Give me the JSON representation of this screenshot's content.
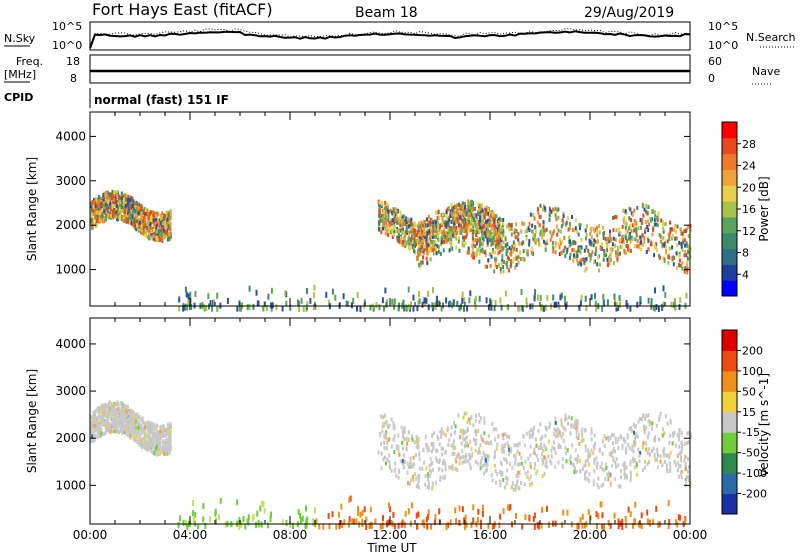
{
  "header": {
    "station": "Fort Hays East (fitACF)",
    "beam": "Beam 18",
    "date": "29/Aug/2019"
  },
  "noise_panel": {
    "left_label": "N.Sky",
    "right_label": "N.Search",
    "left_ticks": [
      "10^5",
      "10^0"
    ],
    "right_ticks": [
      "10^5",
      "10^0"
    ]
  },
  "freq_panel": {
    "left_label_1": "Freq.",
    "left_label_2": "[MHz]",
    "right_label": "Nave",
    "left_ticks": [
      "18",
      "8"
    ],
    "right_ticks": [
      "60",
      "0"
    ]
  },
  "cpid": {
    "label": "CPID",
    "value": "normal (fast) 151 IF"
  },
  "chart_data": [
    {
      "type": "heatmap",
      "name": "power",
      "ylabel": "Slant Range [km]",
      "y_ticks": [
        "4000",
        "3000",
        "2000",
        "1000"
      ],
      "ylim": [
        180,
        4550
      ],
      "colorbar_label": "Power [dB]",
      "colorbar_ticks": [
        "28",
        "24",
        "20",
        "16",
        "12",
        "8",
        "4"
      ],
      "colorbar_colors": [
        "#0000ff",
        "#1f3fa0",
        "#2f6f8a",
        "#3b8a6a",
        "#5aa35a",
        "#a8c34a",
        "#e6d24a",
        "#f2a23a",
        "#f07a2a",
        "#e8481c",
        "#ff0000"
      ],
      "features": [
        {
          "t_start": 0.0,
          "t_end": 3.2,
          "range_km": [
            1800,
            2700
          ]
        },
        {
          "t_start": 11.5,
          "t_end": 16.5,
          "range_km": [
            1500,
            2500
          ]
        },
        {
          "t_start": 13.0,
          "t_end": 24.0,
          "range_km": [
            1000,
            2500
          ]
        },
        {
          "t_start": 3.5,
          "t_end": 24.0,
          "range_km": [
            180,
            700
          ]
        }
      ]
    },
    {
      "type": "heatmap",
      "name": "velocity",
      "ylabel": "Slant Range [km]",
      "y_ticks": [
        "4000",
        "3000",
        "2000",
        "1000"
      ],
      "ylim": [
        180,
        4550
      ],
      "colorbar_label": "Velocity [m s^-1]",
      "colorbar_ticks": [
        "200",
        "100",
        "50",
        "15",
        "-15",
        "-50",
        "-100",
        "-200"
      ],
      "colorbar_colors": [
        "#1c2fa8",
        "#2a6aa8",
        "#2f8a4a",
        "#6fcc3a",
        "#c8c8c8",
        "#f2d23a",
        "#f0901a",
        "#ef4a14",
        "#e00000"
      ],
      "features": [
        {
          "t_start": 0.0,
          "t_end": 3.2,
          "range_km": [
            1800,
            2700
          ]
        },
        {
          "t_start": 11.5,
          "t_end": 24.0,
          "range_km": [
            900,
            2600
          ]
        },
        {
          "t_start": 3.5,
          "t_end": 24.0,
          "range_km": [
            180,
            800
          ]
        }
      ]
    }
  ],
  "x_axis": {
    "label": "Time UT",
    "ticks": [
      "00:00",
      "04:00",
      "08:00",
      "12:00",
      "16:00",
      "20:00",
      "00:00"
    ]
  }
}
